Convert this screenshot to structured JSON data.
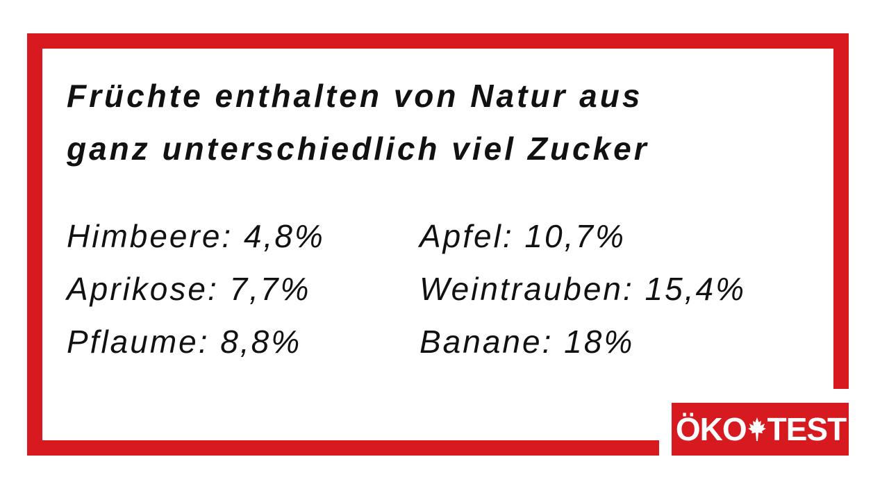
{
  "headline": {
    "line1": "Früchte enthalten von Natur aus",
    "line2": "ganz unterschiedlich viel Zucker"
  },
  "fruits": [
    {
      "text": "Himbeere: 4,8%"
    },
    {
      "text": "Aprikose: 7,7%"
    },
    {
      "text": "Pflaume: 8,8%"
    },
    {
      "text": "Apfel: 10,7%"
    },
    {
      "text": "Weintrauben: 15,4%"
    },
    {
      "text": "Banane: 18%"
    }
  ],
  "logo": {
    "left": "ÖKO",
    "right": "TEST",
    "icon": "leaf-icon"
  },
  "colors": {
    "accent": "#d71920",
    "text": "#111111",
    "background": "#ffffff"
  }
}
